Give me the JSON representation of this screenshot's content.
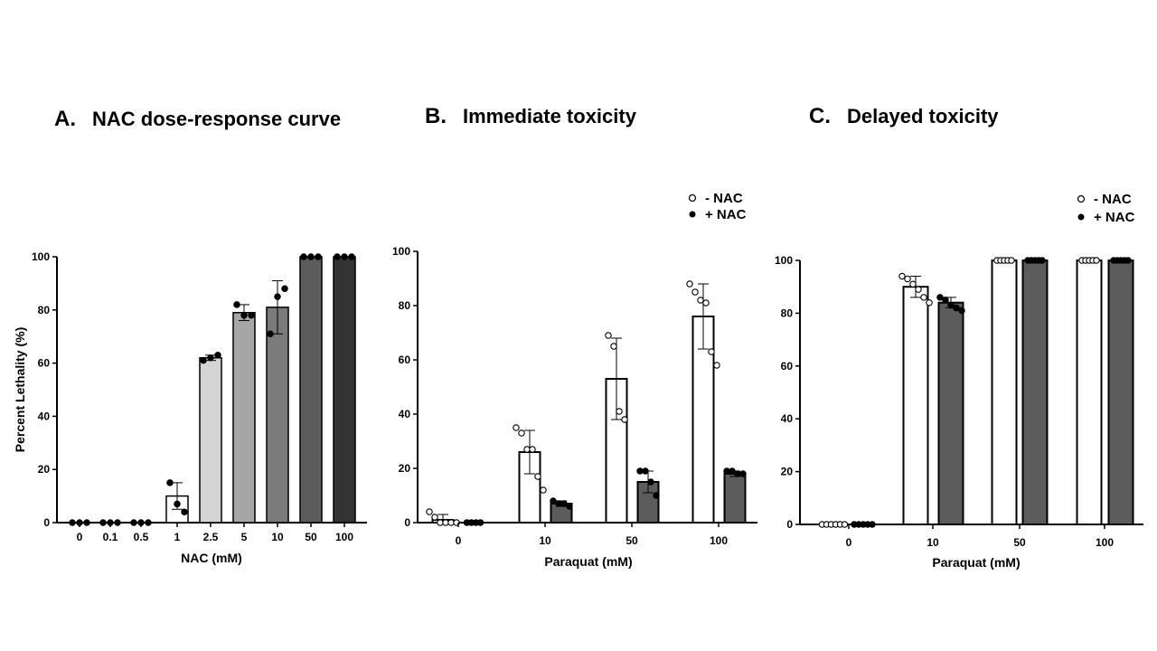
{
  "panels": [
    {
      "letter": "A.",
      "title": "NAC dose-response curve"
    },
    {
      "letter": "B.",
      "title": "Immediate toxicity"
    },
    {
      "letter": "C.",
      "title": "Delayed toxicity"
    }
  ],
  "legend": {
    "minus": "-  NAC",
    "plus": "+ NAC"
  },
  "chart_data": [
    {
      "type": "bar",
      "categories": [
        "0",
        "0.1",
        "0.5",
        "1",
        "2.5",
        "5",
        "10",
        "50",
        "100"
      ],
      "values": [
        0,
        0,
        0,
        10,
        62,
        79,
        81,
        100,
        100
      ],
      "errors": [
        0,
        0,
        0,
        5,
        1,
        3,
        10,
        0,
        0
      ],
      "points": [
        [
          0,
          0,
          0
        ],
        [
          0,
          0,
          0
        ],
        [
          0,
          0,
          0
        ],
        [
          15,
          7,
          4
        ],
        [
          61,
          62,
          63
        ],
        [
          82,
          78,
          78
        ],
        [
          71,
          85,
          88
        ],
        [
          100,
          100,
          100
        ],
        [
          100,
          100,
          100
        ]
      ],
      "bar_colors": [
        "#ffffff",
        "#ffffff",
        "#ffffff",
        "#ffffff",
        "#d4d4d4",
        "#a6a6a6",
        "#7b7b7b",
        "#5c5c5c",
        "#333333"
      ],
      "xlabel": "NAC (mM)",
      "ylabel": "Percent Lethality (%)",
      "ylim": [
        0,
        100
      ],
      "yticks": [
        0,
        20,
        40,
        60,
        80,
        100
      ],
      "grid": false
    },
    {
      "type": "bar",
      "categories": [
        "0",
        "10",
        "50",
        "100"
      ],
      "series": [
        {
          "values": [
            1,
            26,
            53,
            76
          ],
          "errors": [
            2,
            8,
            15,
            12
          ],
          "points": [
            [
              4,
              2,
              0,
              0,
              0,
              0
            ],
            [
              35,
              33,
              27,
              27,
              17,
              12
            ],
            [
              69,
              65,
              41,
              38
            ],
            [
              88,
              85,
              82,
              81,
              63,
              58
            ]
          ],
          "color": "#ffffff",
          "marker": "open"
        },
        {
          "values": [
            0,
            7,
            15,
            18
          ],
          "errors": [
            0,
            1,
            4,
            1
          ],
          "points": [
            [
              0,
              0,
              0,
              0
            ],
            [
              8,
              7,
              7,
              6
            ],
            [
              19,
              19,
              15,
              10
            ],
            [
              19,
              19,
              18,
              18
            ]
          ],
          "color": "#5c5c5c",
          "marker": "filled"
        }
      ],
      "xlabel": "Paraquat (mM)",
      "ylim": [
        0,
        100
      ],
      "yticks": [
        0,
        20,
        40,
        60,
        80,
        100
      ],
      "legend_position": "top-right",
      "grid": false
    },
    {
      "type": "bar",
      "categories": [
        "0",
        "10",
        "50",
        "100"
      ],
      "series": [
        {
          "values": [
            0,
            90,
            100,
            100
          ],
          "errors": [
            0,
            4,
            0,
            0
          ],
          "points": [
            [
              0,
              0,
              0,
              0,
              0,
              0
            ],
            [
              94,
              93,
              91,
              89,
              86,
              84
            ],
            [
              100,
              100,
              100,
              100,
              100
            ],
            [
              100,
              100,
              100,
              100,
              100
            ]
          ],
          "color": "#ffffff",
          "marker": "open"
        },
        {
          "values": [
            0,
            84,
            100,
            100
          ],
          "errors": [
            0,
            2,
            0,
            0
          ],
          "points": [
            [
              0,
              0,
              0,
              0,
              0
            ],
            [
              86,
              85,
              83,
              82,
              81
            ],
            [
              100,
              100,
              100,
              100,
              100
            ],
            [
              100,
              100,
              100,
              100,
              100
            ]
          ],
          "color": "#5c5c5c",
          "marker": "filled"
        }
      ],
      "xlabel": "Paraquat (mM)",
      "ylim": [
        0,
        100
      ],
      "yticks": [
        0,
        20,
        40,
        60,
        80,
        100
      ],
      "legend_position": "top-right",
      "grid": false
    }
  ]
}
